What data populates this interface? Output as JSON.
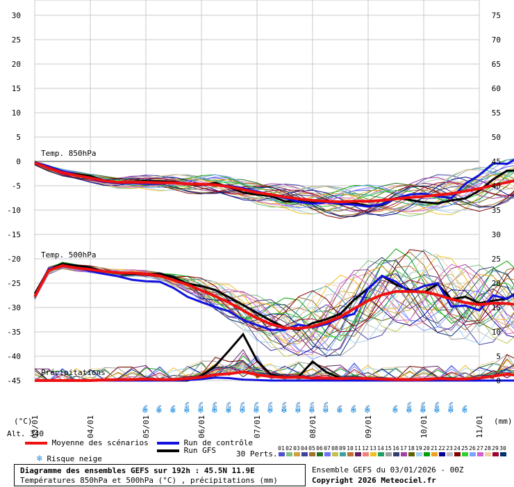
{
  "unit_left": "(°C)",
  "unit_right": "(mm)",
  "altitude": "Alt. 340",
  "labels": {
    "temp850": "Temp. 850hPa",
    "temp500": "Temp. 500hPa",
    "precip": "Précipitations"
  },
  "legend": {
    "mean": "Moyenne des scénarios",
    "control": "Run de contrôle",
    "gfs": "Run GFS",
    "snow": "Risque neige",
    "perts": "30 Perts.",
    "mean_color": "#ee1111",
    "control_color": "#1111dd",
    "gfs_color": "#000000"
  },
  "members": [
    "01",
    "02",
    "03",
    "04",
    "05",
    "06",
    "07",
    "08",
    "09",
    "10",
    "11",
    "12",
    "13",
    "14",
    "15",
    "16",
    "17",
    "18",
    "19",
    "20",
    "21",
    "22",
    "23",
    "24",
    "25",
    "26",
    "27",
    "28",
    "29",
    "30"
  ],
  "member_colors": [
    "#4f4fd0",
    "#80c080",
    "#d0a040",
    "#4040a0",
    "#a07030",
    "#207020",
    "#7070ff",
    "#c0c050",
    "#40a0a0",
    "#c07030",
    "#602060",
    "#f08080",
    "#f0c020",
    "#20a060",
    "#a0a0a0",
    "#304070",
    "#a040a0",
    "#606000",
    "#a0d0f0",
    "#00a000",
    "#f0a020",
    "#000090",
    "#c0c0c0",
    "#800000",
    "#30d030",
    "#80a0ff",
    "#d060d0",
    "#f0d0a0",
    "#a00030",
    "#003070"
  ],
  "title": {
    "line1": "Diagramme des ensembles GEFS sur 192h : 45.5N 11.9E",
    "line2": "Températures 850hPa et 500hPa (°C) , précipitations (mm)"
  },
  "ensemble_info": "Ensemble GEFS du 03/01/2026 - 00Z",
  "copyright": "Copyright 2026 Meteociel.fr",
  "snow_risk": [
    "3%",
    "6%",
    "6%",
    "16%",
    "32%",
    "39%",
    "42%",
    "32%",
    "32%",
    "23%",
    "16%",
    "13%",
    "16%",
    "13%",
    "6%",
    "3%",
    "3%",
    "",
    "3%",
    "16%",
    "10%",
    "10%",
    "16%",
    "3%"
  ],
  "chart_data": {
    "type": "line",
    "x_dates": [
      "03/01",
      "04/01",
      "05/01",
      "06/01",
      "07/01",
      "08/01",
      "09/01",
      "10/01",
      "11/01"
    ],
    "y_left_ticks": [
      30,
      25,
      20,
      15,
      10,
      5,
      0,
      -5,
      -10,
      -15,
      -20,
      -25,
      -30,
      -35,
      -40,
      -45
    ],
    "y_right_ticks": [
      75,
      70,
      65,
      60,
      55,
      50,
      45,
      40,
      35,
      30,
      25,
      20,
      15,
      10,
      5,
      0
    ],
    "ylim_left": [
      -45,
      30
    ],
    "ylim_right": [
      0,
      75
    ],
    "x_step_hours": 6,
    "grid": true,
    "temp850": {
      "mean": [
        -0.3,
        -1.4,
        -2.3,
        -2.9,
        -3.4,
        -4.0,
        -4.3,
        -4.3,
        -4.3,
        -4.4,
        -4.4,
        -4.6,
        -4.7,
        -4.8,
        -5.2,
        -5.8,
        -6.4,
        -6.8,
        -7.3,
        -7.7,
        -8.0,
        -8.2,
        -8.3,
        -8.2,
        -8.2,
        -8.0,
        -7.7,
        -7.4,
        -7.2,
        -6.9,
        -6.6,
        -6.1,
        -5.6,
        -4.9,
        -4.3,
        -3.6,
        -3.3,
        -3.4
      ],
      "control": [
        -0.2,
        -1.0,
        -2.0,
        -2.8,
        -3.5,
        -4.2,
        -4.5,
        -4.5,
        -4.6,
        -4.6,
        -4.3,
        -4.6,
        -4.8,
        -4.8,
        -5.0,
        -5.5,
        -6.2,
        -6.8,
        -7.5,
        -8.3,
        -8.7,
        -8.4,
        -8.7,
        -8.9,
        -9.3,
        -8.8,
        -7.6,
        -6.8,
        -6.6,
        -7.2,
        -7.5,
        -4.6,
        -2.8,
        -0.4,
        -0.5,
        1.1,
        0.0,
        -2.1
      ],
      "gfs": [
        -0.1,
        -1.2,
        -2.1,
        -2.6,
        -3.0,
        -4.0,
        -4.3,
        -4.2,
        -4.0,
        -4.1,
        -4.2,
        -4.7,
        -4.9,
        -4.4,
        -5.3,
        -6.4,
        -6.8,
        -7.1,
        -8.2,
        -8.2,
        -8.5,
        -8.0,
        -8.8,
        -8.6,
        -9.1,
        -9.0,
        -7.5,
        -7.9,
        -8.4,
        -8.6,
        -8.0,
        -7.6,
        -6.0,
        -3.7,
        -1.9,
        -1.9,
        -1.8,
        1.6
      ]
    },
    "temp500": {
      "mean": [
        -27.8,
        -22.4,
        -21.4,
        -21.9,
        -22.2,
        -22.6,
        -22.9,
        -22.9,
        -23.1,
        -23.5,
        -24.4,
        -25.3,
        -26.5,
        -27.7,
        -29.0,
        -30.6,
        -32.2,
        -33.4,
        -34.2,
        -34.3,
        -33.9,
        -33.0,
        -31.9,
        -30.2,
        -28.6,
        -27.4,
        -26.7,
        -26.7,
        -26.8,
        -27.4,
        -28.3,
        -29.0,
        -29.4,
        -29.1,
        -29.2,
        -29.5,
        -29.8,
        -29.3
      ],
      "control": [
        -27.7,
        -22.1,
        -21.5,
        -21.9,
        -22.5,
        -23.1,
        -23.6,
        -24.3,
        -24.6,
        -24.7,
        -26.0,
        -27.8,
        -28.9,
        -29.9,
        -30.8,
        -32.6,
        -33.6,
        -34.6,
        -34.6,
        -33.5,
        -34.1,
        -33.4,
        -32.1,
        -31.3,
        -26.2,
        -23.5,
        -24.7,
        -26.8,
        -25.6,
        -25.0,
        -29.8,
        -29.6,
        -30.6,
        -27.5,
        -28.2,
        -26.6,
        -23.7,
        -19.9
      ],
      "gfs": [
        -27.2,
        -22.2,
        -21.0,
        -21.4,
        -21.8,
        -22.6,
        -23.0,
        -23.1,
        -23.1,
        -23.1,
        -23.8,
        -25.1,
        -25.6,
        -26.4,
        -27.9,
        -29.5,
        -31.1,
        -32.7,
        -34.1,
        -34.6,
        -33.2,
        -32.4,
        -31.3,
        -28.4,
        -26.1,
        -23.5,
        -25.3,
        -26.4,
        -26.9,
        -25.2,
        -28.3,
        -27.8,
        -29.1,
        -28.6,
        -28.2,
        -26.3,
        -27.9,
        -24.3
      ]
    },
    "precip": {
      "mean": [
        0.0,
        0.0,
        0.0,
        0.0,
        0.0,
        0.1,
        0.2,
        0.2,
        0.3,
        0.2,
        0.2,
        0.4,
        0.7,
        1.2,
        1.4,
        1.8,
        1.2,
        0.8,
        0.6,
        0.7,
        0.5,
        0.5,
        0.4,
        0.5,
        0.4,
        0.3,
        0.2,
        0.2,
        0.2,
        0.4,
        0.3,
        0.3,
        0.5,
        0.9,
        1.3,
        1.0,
        0.7,
        0.1
      ],
      "control": [
        0.0,
        0.0,
        0.0,
        0.0,
        0.0,
        0.0,
        0.0,
        0.0,
        0.0,
        0.0,
        0.0,
        0.1,
        0.3,
        0.6,
        0.5,
        0.2,
        0.1,
        0.0,
        0.0,
        0.0,
        0.0,
        0.0,
        0.0,
        0.0,
        0.0,
        0.0,
        0.0,
        0.0,
        0.0,
        0.0,
        0.0,
        0.0,
        0.0,
        0.0,
        0.0,
        0.0,
        0.0,
        0.0
      ],
      "gfs": [
        0.0,
        0.0,
        0.0,
        0.0,
        0.0,
        0.0,
        0.0,
        0.0,
        0.0,
        0.0,
        0.0,
        0.0,
        1.0,
        3.0,
        6.2,
        9.5,
        4.1,
        1.2,
        0.7,
        0.8,
        3.9,
        1.7,
        0.5,
        0.0,
        0.0,
        0.0,
        0.0,
        0.0,
        0.0,
        0.0,
        0.0,
        0.0,
        0.0,
        0.0,
        0.0,
        0.0,
        0.0,
        0.0
      ]
    }
  }
}
